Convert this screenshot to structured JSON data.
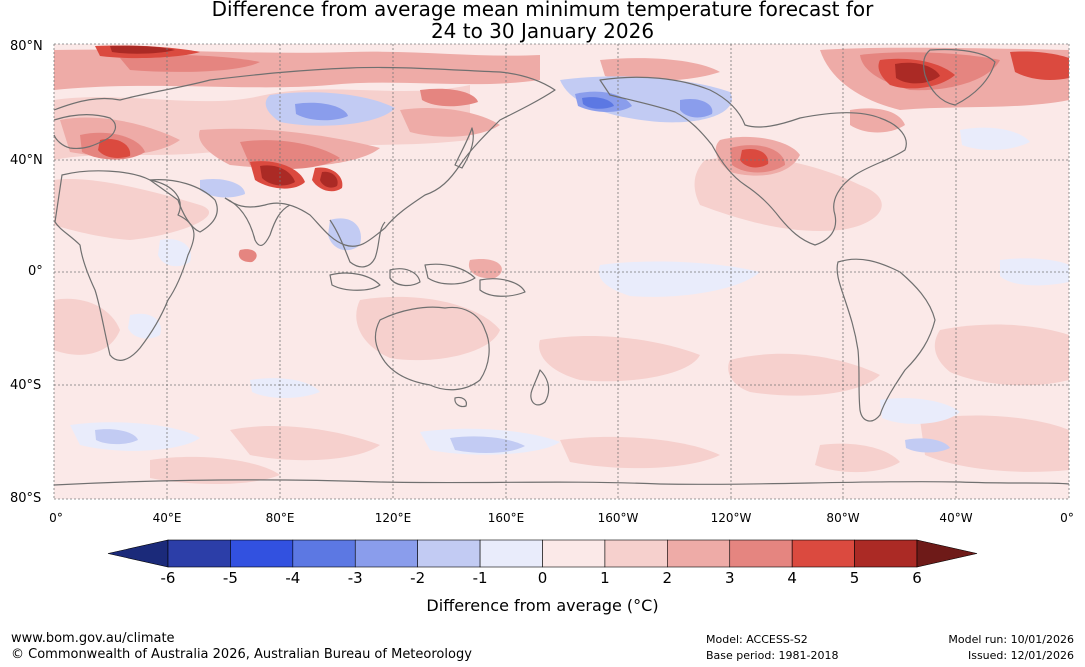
{
  "title_line1": "Difference from average mean minimum temperature forecast for",
  "title_line2": "24 to 30 January 2026",
  "lat_labels": [
    "80°N",
    "40°N",
    "0°",
    "40°S",
    "80°S"
  ],
  "lon_labels": [
    "0°",
    "40°E",
    "80°E",
    "120°E",
    "160°E",
    "160°W",
    "120°W",
    "80°W",
    "40°W",
    "0°"
  ],
  "colorbar": {
    "title": "Difference from average (°C)",
    "ticks": [
      "-6",
      "-5",
      "-4",
      "-3",
      "-2",
      "-1",
      "0",
      "1",
      "2",
      "3",
      "4",
      "5",
      "6"
    ],
    "low_extend_color": "#1b2a7a",
    "high_extend_color": "#6e1a18",
    "colors": [
      "#2c3ea8",
      "#3251e0",
      "#5c78e3",
      "#8a9dec",
      "#c2cbf3",
      "#e9ecfb",
      "#fbe9e8",
      "#f6d0cd",
      "#eeaba7",
      "#e58580",
      "#db4a3f",
      "#ab2a25"
    ]
  },
  "map_colors": {
    "base": "#fbe9e8",
    "light_red": "#f6d0cd",
    "mid_red": "#eeaba7",
    "red": "#e58580",
    "strong_red": "#db4a3f",
    "dark_red": "#ab2a25",
    "darkest": "#6e1a18",
    "light_blue": "#e9ecfb",
    "blue": "#c2cbf3",
    "mid_blue": "#8a9dec",
    "deep_blue": "#5c78e3",
    "coast": "#707070",
    "grid": "#777777"
  },
  "footer": {
    "website": "www.bom.gov.au/climate",
    "copyright": "© Commonwealth of Australia 2026, Australian Bureau of Meteorology",
    "model": "Model: ACCESS-S2",
    "base_period": "Base period: 1981-2018",
    "model_run": "Model run: 10/01/2026",
    "issued": "Issued: 12/01/2026"
  }
}
